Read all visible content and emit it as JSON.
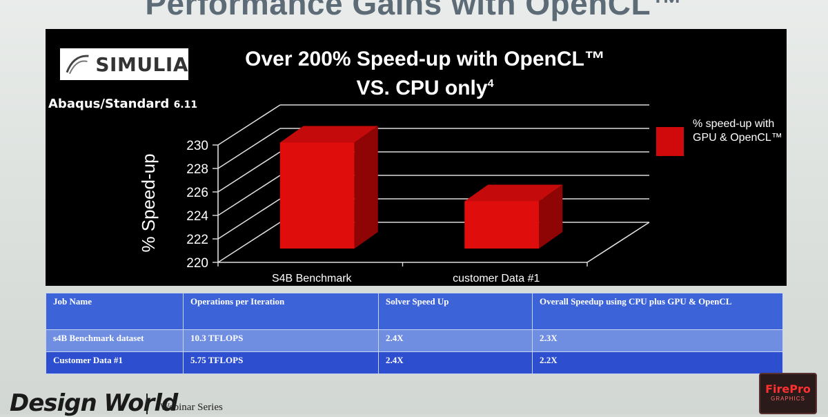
{
  "slide": {
    "title": "Performance Gains with OpenCL™"
  },
  "logo": {
    "text": "SIMULIA"
  },
  "product": {
    "name": "Abaqus/Standard",
    "version": "6.11"
  },
  "chart_data": {
    "type": "bar",
    "title_line1": "Over 200% Speed-up with OpenCL™",
    "title_line2": "VS. CPU only",
    "title_footnote": "4",
    "ylabel": "% Speed-up",
    "xlabel": "",
    "ylim": [
      220,
      230
    ],
    "yticks": [
      220,
      222,
      224,
      226,
      228,
      230
    ],
    "categories": [
      "S4B Benchmark",
      "customer Data #1"
    ],
    "series": [
      {
        "name": "% speed-up with GPU & OpenCL™",
        "values": [
          229.5,
          224.5
        ],
        "color": "#d00a0a"
      }
    ],
    "legend_position": "right",
    "grid": true,
    "three_d": true
  },
  "table": {
    "headers": [
      "Job Name",
      "Operations per Iteration",
      "Solver Speed Up",
      "Overall Speedup using CPU plus GPU & OpenCL"
    ],
    "rows": [
      [
        "s4B Benchmark dataset",
        "10.3 TFLOPS",
        "2.4X",
        "2.3X"
      ],
      [
        "Customer Data #1",
        "5.75 TFLOPS",
        "2.4X",
        "2.2X"
      ]
    ]
  },
  "footer": {
    "brand": "Design World",
    "series": "Webinar Series"
  },
  "badge": {
    "title": "FirePro",
    "subtitle": "GRAPHICS"
  }
}
